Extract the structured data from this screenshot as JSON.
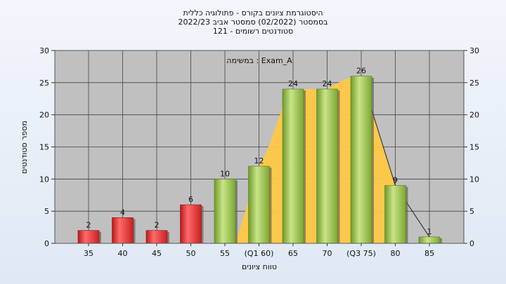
{
  "chart_data": {
    "type": "bar",
    "title_lines": [
      "היסטוגרמת ציונים בקורס - פתולוגיה כללית",
      "בסמסטר  (02/2022)  סמסטר אביב 2022/23",
      "סטודנטים רשומים - 121"
    ],
    "annotation": "במשימה : Exam_A",
    "xlabel": "טווח ציונים",
    "ylabel": "מספר סטודנטים",
    "categories": [
      "35",
      "40",
      "45",
      "50",
      "55",
      "(Q1 60)",
      "65",
      "70",
      "(Q3 75)",
      "80",
      "85"
    ],
    "values": [
      2,
      4,
      2,
      6,
      10,
      12,
      24,
      24,
      26,
      9,
      1
    ],
    "bar_colors": [
      "red",
      "red",
      "red",
      "red",
      "green",
      "green",
      "green",
      "green",
      "green",
      "green",
      "green"
    ],
    "ylim": [
      0,
      30
    ],
    "yticks": [
      0,
      5,
      10,
      15,
      20,
      25,
      30
    ],
    "grid": true,
    "distribution_curve": true,
    "colors": {
      "plot_bg": "#c0c0c0",
      "red_bar": "#e03030",
      "green_bar": "#9cc24a",
      "curve_fill": "#ffc845"
    }
  }
}
